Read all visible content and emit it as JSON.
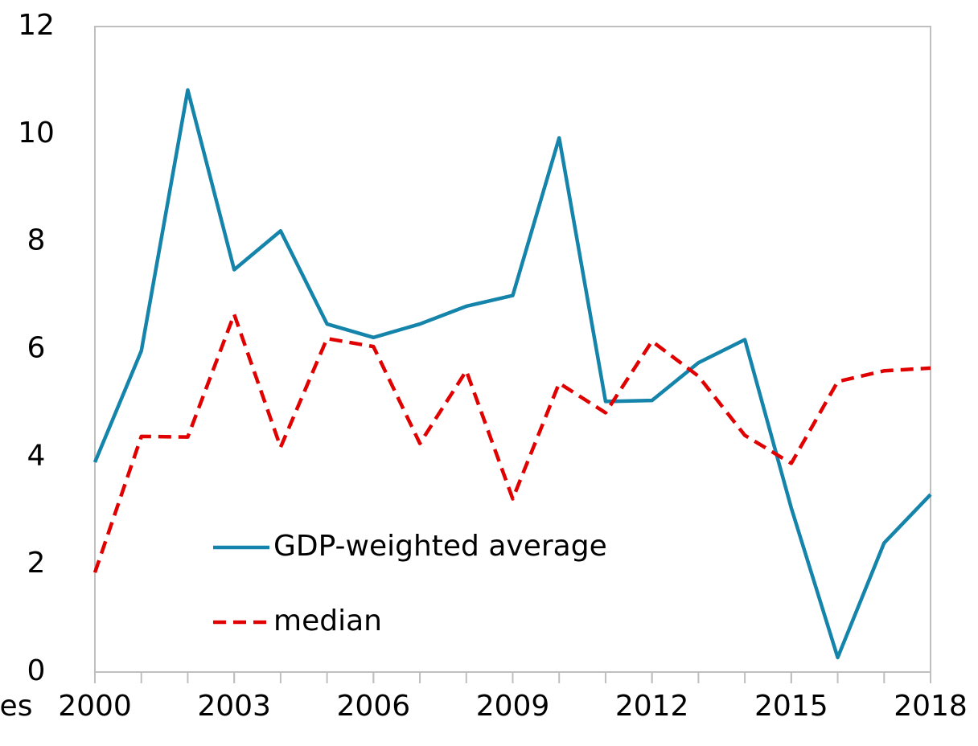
{
  "chart_data": {
    "type": "line",
    "annotation": "es",
    "x": [
      2000,
      2001,
      2002,
      2003,
      2004,
      2005,
      2006,
      2007,
      2008,
      2009,
      2010,
      2011,
      2012,
      2013,
      2014,
      2015,
      2016,
      2017,
      2018
    ],
    "series": [
      {
        "name": "GDP-weighted average",
        "color": "#1584aa",
        "dash": false,
        "values": [
          3.9,
          5.97,
          10.82,
          7.48,
          8.2,
          6.47,
          6.22,
          6.47,
          6.8,
          7.0,
          9.93,
          5.03,
          5.05,
          5.75,
          6.18,
          3.05,
          0.27,
          2.4,
          3.3
        ]
      },
      {
        "name": "median",
        "color": "#e00000",
        "dash": true,
        "values": [
          1.85,
          4.38,
          4.37,
          6.65,
          4.18,
          6.2,
          6.05,
          4.25,
          5.6,
          3.22,
          5.37,
          4.82,
          6.15,
          5.5,
          4.4,
          3.88,
          5.4,
          5.6,
          5.65
        ]
      }
    ],
    "xlim": [
      2000,
      2018
    ],
    "xticks": [
      2000,
      2003,
      2006,
      2009,
      2012,
      2015,
      2018
    ],
    "ylim": [
      0,
      12
    ],
    "yticks": [
      0,
      2,
      4,
      6,
      8,
      10,
      12
    ],
    "grid": false,
    "legend": "lower left"
  }
}
